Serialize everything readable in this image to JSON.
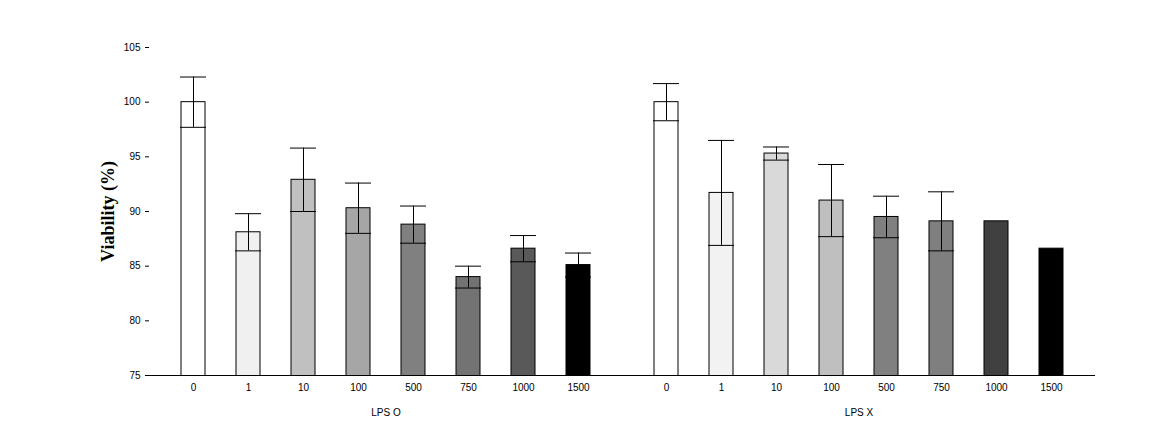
{
  "chart_data": {
    "type": "bar",
    "y_label": "Viability (%)",
    "categories": [
      "0",
      "1",
      "10",
      "100",
      "500",
      "750",
      "1000",
      "1500"
    ],
    "series": [
      {
        "name": "LPS O",
        "values": [
          100,
          88.1,
          92.9,
          90.3,
          88.8,
          84.0,
          86.6,
          85.1
        ],
        "errors": [
          2.3,
          1.7,
          2.9,
          2.3,
          1.7,
          1.0,
          1.2,
          1.1
        ],
        "colors": [
          "#ffffff",
          "#f0f0f0",
          "#c0c0c0",
          "#a6a6a6",
          "#808080",
          "#737373",
          "#595959",
          "#000000"
        ]
      },
      {
        "name": "LPS X",
        "values": [
          100,
          91.7,
          95.3,
          91.0,
          89.5,
          89.1,
          89.1,
          86.6
        ],
        "errors": [
          1.7,
          4.8,
          0.6,
          3.3,
          1.9,
          2.7,
          null,
          null
        ],
        "colors": [
          "#ffffff",
          "#f2f2f2",
          "#d9d9d9",
          "#bfbfbf",
          "#808080",
          "#7f7f7f",
          "#404040",
          "#000000"
        ]
      }
    ],
    "ylim": [
      75,
      105
    ],
    "yticks": [
      75,
      80,
      85,
      90,
      95,
      100,
      105
    ],
    "grid": false
  }
}
